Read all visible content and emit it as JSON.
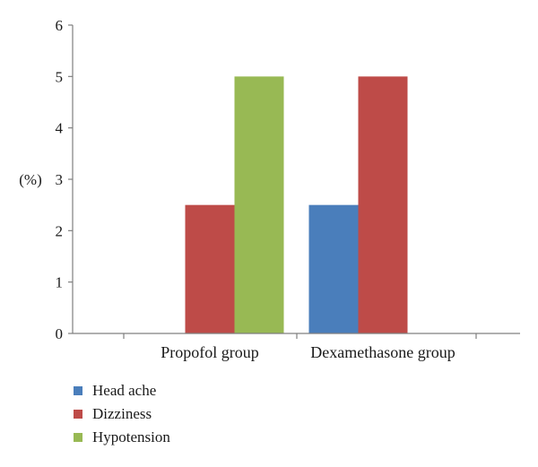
{
  "chart_data": {
    "type": "bar",
    "categories": [
      "Propofol group",
      "Dexamethasone group"
    ],
    "series": [
      {
        "name": "Head ache",
        "values": [
          0,
          2.5
        ],
        "color": "#4a7ebb"
      },
      {
        "name": "Dizziness",
        "values": [
          2.5,
          5
        ],
        "color": "#be4b48"
      },
      {
        "name": "Hypotension",
        "values": [
          5,
          0
        ],
        "color": "#98b954"
      }
    ],
    "ylabel": "(%)",
    "ylim": [
      0,
      6
    ],
    "yticks": [
      0,
      1,
      2,
      3,
      4,
      5,
      6
    ],
    "grid": false,
    "legend_position": "bottom-left"
  }
}
